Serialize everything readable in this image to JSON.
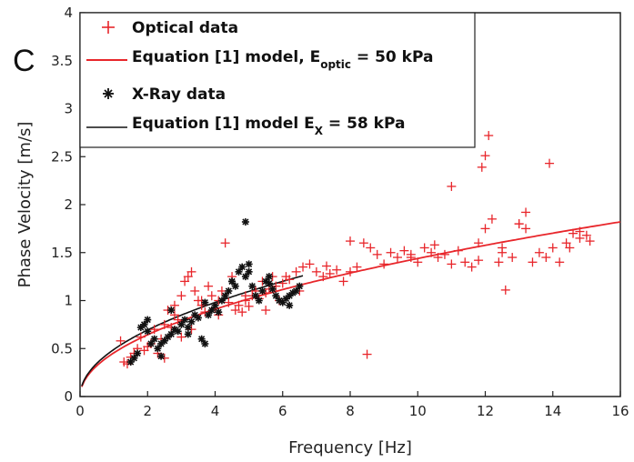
{
  "chart_data": {
    "type": "scatter",
    "panel_label": "C",
    "xlabel": "Frequency [Hz]",
    "ylabel": "Phase Velocity [m/s]",
    "xlim": [
      0,
      16
    ],
    "ylim": [
      0,
      4
    ],
    "xticks": [
      "0",
      "2",
      "4",
      "6",
      "8",
      "10",
      "12",
      "14",
      "16"
    ],
    "yticks": [
      "0",
      "0.5",
      "1",
      "1.5",
      "2",
      "2.5",
      "3",
      "3.5",
      "4"
    ],
    "colors": {
      "optical": "#e8262b",
      "xray": "#111111",
      "model_optical": "#e8262b",
      "model_xray": "#111111"
    },
    "legend": {
      "position": "top-left",
      "optical": "Optical data",
      "model_optical_prefix": "Equation [1] model, E",
      "model_optical_sub": "optic",
      "model_optical_suffix": " = 50 kPa",
      "xray": "X-Ray data",
      "model_xray_prefix": "Equation [1] model E",
      "model_xray_sub": "X",
      "model_xray_suffix": " = 58 kPa"
    },
    "series": [
      {
        "name": "Optical data",
        "marker": "plus",
        "x": [
          1.2,
          1.3,
          1.4,
          1.5,
          1.6,
          1.7,
          1.8,
          1.9,
          2.0,
          2.1,
          2.2,
          2.3,
          2.4,
          2.5,
          2.6,
          2.7,
          2.8,
          2.9,
          3.0,
          3.1,
          3.2,
          3.3,
          3.4,
          3.5,
          3.6,
          3.7,
          3.8,
          3.9,
          4.0,
          4.1,
          4.2,
          4.3,
          4.4,
          4.5,
          4.6,
          4.7,
          4.8,
          4.9,
          5.0,
          5.1,
          5.2,
          5.3,
          5.4,
          5.5,
          5.6,
          5.7,
          5.8,
          5.9,
          6.0,
          6.2,
          6.4,
          6.6,
          6.8,
          7.0,
          7.2,
          7.4,
          7.6,
          7.8,
          8.0,
          8.2,
          8.4,
          8.5,
          8.6,
          8.8,
          9.0,
          9.2,
          9.4,
          9.6,
          9.8,
          10.0,
          10.2,
          10.4,
          10.6,
          10.8,
          11.0,
          11.2,
          11.4,
          11.6,
          11.8,
          11.9,
          12.0,
          12.1,
          12.2,
          12.4,
          12.5,
          12.6,
          12.8,
          13.0,
          13.2,
          13.4,
          13.6,
          13.8,
          13.9,
          14.0,
          14.2,
          14.4,
          14.6,
          14.8,
          15.0,
          15.1,
          2.5,
          3.3,
          4.1,
          3.0,
          5.5,
          4.9,
          8.0,
          9.8,
          10.5,
          11.0,
          11.8,
          12.0,
          12.5,
          13.0,
          13.2,
          14.5,
          14.8,
          2.8,
          3.6,
          6.1,
          6.5,
          7.3
        ],
        "y": [
          0.58,
          0.36,
          0.34,
          0.41,
          0.45,
          0.5,
          0.62,
          0.48,
          0.52,
          0.55,
          0.7,
          0.45,
          0.6,
          0.75,
          0.9,
          0.72,
          0.85,
          0.8,
          1.05,
          1.2,
          1.25,
          1.3,
          1.1,
          1.0,
          0.95,
          0.88,
          1.15,
          1.05,
          0.92,
          1.0,
          1.1,
          1.6,
          0.98,
          1.25,
          0.9,
          0.95,
          0.88,
          1.0,
          0.94,
          1.05,
          1.1,
          1.02,
          1.2,
          1.08,
          1.12,
          1.25,
          1.15,
          1.0,
          1.18,
          1.22,
          1.3,
          1.35,
          1.38,
          1.3,
          1.25,
          1.28,
          1.32,
          1.2,
          1.62,
          1.35,
          1.6,
          0.44,
          1.55,
          1.48,
          1.38,
          1.5,
          1.45,
          1.52,
          1.48,
          1.4,
          1.55,
          1.5,
          1.45,
          1.48,
          2.19,
          1.52,
          1.4,
          1.35,
          1.6,
          2.39,
          2.51,
          2.72,
          1.85,
          1.4,
          1.5,
          1.11,
          1.45,
          1.8,
          1.75,
          1.4,
          1.5,
          1.45,
          2.43,
          1.55,
          1.4,
          1.6,
          1.7,
          1.72,
          1.68,
          1.62,
          0.4,
          0.7,
          0.85,
          0.62,
          0.9,
          1.05,
          1.3,
          1.45,
          1.58,
          1.38,
          1.42,
          1.75,
          1.55,
          1.8,
          1.92,
          1.55,
          1.65,
          0.95,
          1.0,
          1.25,
          1.1,
          1.36
        ]
      },
      {
        "name": "X-Ray data",
        "marker": "star",
        "x": [
          1.5,
          1.6,
          1.7,
          1.8,
          1.9,
          2.0,
          2.1,
          2.2,
          2.3,
          2.4,
          2.5,
          2.6,
          2.7,
          2.8,
          2.9,
          3.0,
          3.1,
          3.2,
          3.3,
          3.4,
          3.5,
          3.6,
          3.7,
          3.8,
          3.9,
          4.0,
          4.1,
          4.2,
          4.3,
          4.4,
          4.5,
          4.6,
          4.7,
          4.8,
          4.9,
          5.0,
          5.1,
          5.2,
          5.3,
          5.4,
          5.5,
          5.6,
          5.7,
          5.8,
          5.9,
          6.0,
          6.1,
          6.2,
          6.3,
          6.4,
          6.5,
          4.9,
          2.0,
          2.4,
          2.7,
          3.2,
          3.7,
          4.5,
          5.0,
          5.6,
          6.2
        ],
        "y": [
          0.36,
          0.4,
          0.45,
          0.72,
          0.75,
          0.8,
          0.55,
          0.6,
          0.5,
          0.42,
          0.58,
          0.62,
          0.65,
          0.7,
          0.68,
          0.75,
          0.8,
          0.72,
          0.78,
          0.85,
          0.82,
          0.6,
          0.55,
          0.85,
          0.9,
          0.95,
          0.88,
          1.0,
          1.05,
          1.1,
          1.2,
          1.15,
          1.3,
          1.35,
          1.25,
          1.3,
          1.15,
          1.05,
          1.0,
          1.1,
          1.2,
          1.18,
          1.12,
          1.05,
          1.0,
          0.98,
          1.02,
          1.05,
          1.08,
          1.1,
          1.15,
          1.82,
          0.68,
          0.55,
          0.9,
          0.65,
          0.98,
          1.2,
          1.38,
          1.25,
          0.95
        ]
      }
    ],
    "models": [
      {
        "name": "Equation [1] model, E_optic = 50 kPa",
        "coef": 0.455,
        "exponent": 0.5,
        "x_range": [
          0.05,
          16
        ],
        "style": "red"
      },
      {
        "name": "Equation [1] model E_X = 58 kPa",
        "coef": 0.49,
        "exponent": 0.5,
        "x_range": [
          0.05,
          6.6
        ],
        "style": "black"
      }
    ]
  }
}
